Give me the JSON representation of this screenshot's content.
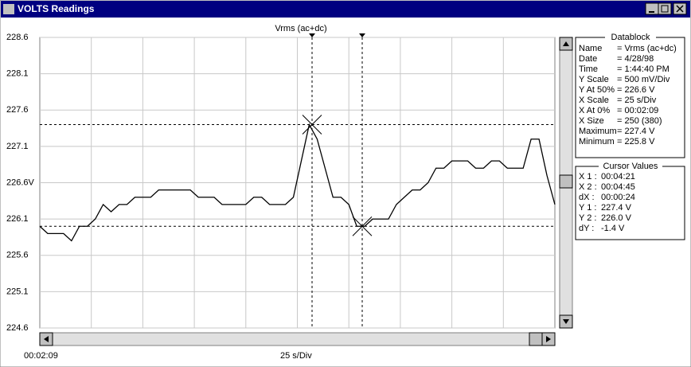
{
  "window": {
    "title": "VOLTS Readings"
  },
  "chart_data": {
    "type": "line",
    "title": "Vrms (ac+dc)",
    "x_start": "00:02:09",
    "x_scale": "25 s/Div",
    "ylim": [
      224.6,
      228.6
    ],
    "yticks": [
      224.6,
      225.1,
      225.6,
      226.1,
      {
        "value": 226.6,
        "label": "226.6V"
      },
      227.1,
      227.6,
      228.1,
      228.6
    ],
    "grid": true,
    "color": "#000000",
    "values": [
      226.0,
      225.9,
      225.9,
      225.9,
      225.8,
      226.0,
      226.0,
      226.1,
      226.3,
      226.2,
      226.3,
      226.3,
      226.4,
      226.4,
      226.4,
      226.5,
      226.5,
      226.5,
      226.5,
      226.5,
      226.4,
      226.4,
      226.4,
      226.3,
      226.3,
      226.3,
      226.3,
      226.4,
      226.4,
      226.3,
      226.3,
      226.3,
      226.4,
      226.9,
      227.4,
      227.2,
      226.8,
      226.4,
      226.4,
      226.3,
      226.0,
      226.0,
      226.1,
      226.1,
      226.1,
      226.3,
      226.4,
      226.5,
      226.5,
      226.6,
      226.8,
      226.8,
      226.9,
      226.9,
      226.9,
      226.8,
      226.8,
      226.9,
      226.9,
      226.8,
      226.8,
      226.8,
      227.2,
      227.2,
      226.7,
      226.3
    ],
    "cursors": [
      {
        "value": 227.4
      },
      {
        "value": 226.0
      }
    ]
  },
  "datablock": {
    "title": "Datablock",
    "rows": [
      [
        "Name",
        "= Vrms (ac+dc)"
      ],
      [
        "Date",
        "= 4/28/98"
      ],
      [
        "Time",
        "= 1:44:40 PM"
      ],
      [
        "Y Scale",
        "= 500   mV/Div"
      ],
      [
        "Y At 50%",
        "= 226.6 V"
      ],
      [
        "X Scale",
        "=  25   s/Div"
      ],
      [
        "X At 0%",
        "= 00:02:09"
      ],
      [
        "X Size",
        "= 250 (380)"
      ],
      [
        "Maximum",
        "= 227.4 V"
      ],
      [
        "Minimum",
        "= 225.8 V"
      ]
    ]
  },
  "cursor_values": {
    "title": "Cursor Values",
    "rows": [
      [
        "X 1 :",
        "00:04:21"
      ],
      [
        "X 2 :",
        "00:04:45"
      ],
      [
        "dX :",
        "00:00:24"
      ],
      [
        "Y 1 :",
        "227.4 V"
      ],
      [
        "Y 2 :",
        "226.0 V"
      ],
      [
        "dY :",
        "-1.4 V"
      ]
    ]
  }
}
